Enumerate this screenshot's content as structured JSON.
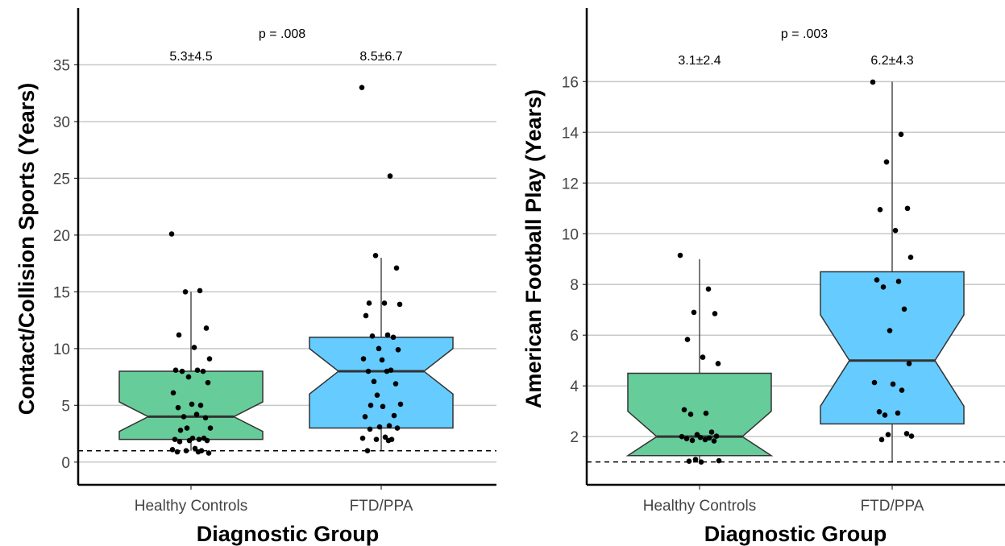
{
  "chart_data": [
    {
      "type": "box",
      "xlabel": "Diagnostic Group",
      "ylabel": "Contact/Collision Sports (Years)",
      "ylim": [
        -2,
        40
      ],
      "yticks": [
        0,
        5,
        10,
        15,
        20,
        25,
        30,
        35
      ],
      "grid": true,
      "categories": [
        "Healthy Controls",
        "FTD/PPA"
      ],
      "reference_line": 1,
      "p_value_label": "p = .008",
      "group_labels": [
        "5.3±4.5",
        "8.5±6.7"
      ],
      "boxes": [
        {
          "group": "Healthy Controls",
          "color": "#66cc99",
          "whisker_low": 1,
          "q1": 2,
          "median": 4,
          "q3": 8,
          "whisker_high": 15,
          "notch": [
            2.7,
            5.3
          ]
        },
        {
          "group": "FTD/PPA",
          "color": "#66ccff",
          "whisker_low": 1,
          "q1": 3,
          "median": 8,
          "q3": 11,
          "whisker_high": 18,
          "notch": [
            6.0,
            10.0
          ]
        }
      ],
      "points": [
        {
          "group": "Healthy Controls",
          "values": [
            20.1,
            15.1,
            15.0,
            11.8,
            11.2,
            10.1,
            9.1,
            8.1,
            8.1,
            8.0,
            8.0,
            7.5,
            7.0,
            6.1,
            5.1,
            5.0,
            4.8,
            4.2,
            4.0,
            3.9,
            3.0,
            3.0,
            2.8,
            2.1,
            2.1,
            2.0,
            2.0,
            1.9,
            1.9,
            1.8,
            1.2,
            1.1,
            1.0,
            1.0,
            0.9,
            0.9,
            0.8
          ]
        },
        {
          "group": "FTD/PPA",
          "values": [
            33.0,
            25.2,
            18.2,
            17.1,
            14.0,
            14.0,
            13.9,
            12.9,
            11.2,
            11.1,
            11.0,
            10.0,
            9.9,
            9.1,
            9.0,
            8.1,
            8.0,
            8.0,
            7.1,
            6.9,
            5.9,
            5.1,
            5.0,
            4.9,
            4.1,
            4.0,
            3.2,
            3.1,
            3.0,
            2.9,
            2.2,
            2.1,
            2.0,
            2.0,
            1.9,
            1.0
          ]
        }
      ]
    },
    {
      "type": "box",
      "xlabel": "Diagnostic Group",
      "ylabel": "American Football Play (Years)",
      "ylim": [
        0.1,
        18.9
      ],
      "yticks": [
        2,
        4,
        6,
        8,
        10,
        12,
        14,
        16
      ],
      "grid": true,
      "categories": [
        "Healthy Controls",
        "FTD/PPA"
      ],
      "reference_line": 1,
      "p_value_label": "p = .003",
      "group_labels": [
        "3.1±2.4",
        "6.2±4.3"
      ],
      "boxes": [
        {
          "group": "Healthy Controls",
          "color": "#66cc99",
          "whisker_low": 1,
          "q1": 1.25,
          "median": 2,
          "q3": 4.5,
          "whisker_high": 9,
          "notch": [
            1.0,
            3.0
          ]
        },
        {
          "group": "FTD/PPA",
          "color": "#66ccff",
          "whisker_low": 1,
          "q1": 2.5,
          "median": 5,
          "q3": 8.5,
          "whisker_high": 16,
          "notch": [
            3.2,
            6.8
          ]
        }
      ],
      "points": [
        {
          "group": "Healthy Controls",
          "values": [
            9.15,
            7.82,
            6.9,
            6.85,
            5.83,
            5.13,
            4.88,
            3.06,
            2.92,
            2.88,
            2.18,
            2.08,
            2.02,
            2.0,
            1.97,
            1.95,
            1.92,
            1.88,
            1.85,
            1.83,
            1.1,
            1.05,
            1.03,
            1.0
          ]
        },
        {
          "group": "FTD/PPA",
          "values": [
            15.98,
            13.92,
            12.83,
            11.0,
            10.95,
            10.13,
            9.07,
            8.18,
            8.12,
            7.9,
            7.03,
            6.18,
            4.88,
            4.13,
            4.07,
            3.83,
            2.98,
            2.93,
            2.85,
            2.12,
            2.08,
            2.02,
            1.88
          ]
        }
      ]
    }
  ]
}
